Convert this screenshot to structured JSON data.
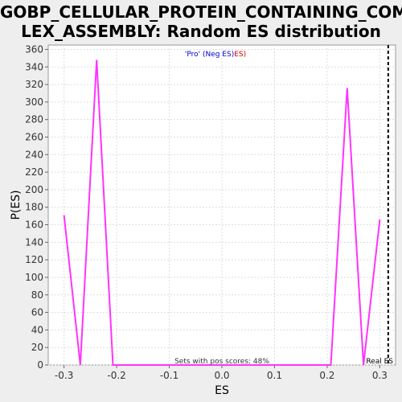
{
  "chart_data": {
    "type": "line",
    "title_line_1": "GOBP_CELLULAR_PROTEIN_CONTAINING_COMP",
    "title_line_2": "LEX_ASSEMBLY: Random ES distribution",
    "xlabel": "ES",
    "ylabel": "P(ES)",
    "xlim": [
      -0.33,
      0.33
    ],
    "ylim": [
      0,
      365
    ],
    "x_ticks": [
      -0.3,
      -0.2,
      -0.1,
      0.0,
      0.1,
      0.2,
      0.3
    ],
    "x_tick_labels": [
      "-0.3",
      "-0.2",
      "-0.1",
      "0.0",
      "0.1",
      "0.2",
      "0.3"
    ],
    "y_ticks": [
      0,
      20,
      40,
      60,
      80,
      100,
      120,
      140,
      160,
      180,
      200,
      220,
      240,
      260,
      280,
      300,
      320,
      340,
      360
    ],
    "y_tick_labels": [
      "0",
      "20",
      "40",
      "60",
      "80",
      "100",
      "120",
      "140",
      "160",
      "180",
      "200",
      "220",
      "240",
      "260",
      "280",
      "300",
      "320",
      "340",
      "360"
    ],
    "grid": true,
    "series": [
      {
        "color": "#ff33ff",
        "x": [
          -0.3,
          -0.269,
          -0.238,
          -0.207,
          0.207,
          0.238,
          0.269,
          0.3
        ],
        "y": [
          171,
          0,
          348,
          0,
          0,
          316,
          0,
          166
        ]
      }
    ],
    "real_es": {
      "x": 0.316,
      "label": "Real ES",
      "color": "#000000"
    },
    "legend": {
      "pro_label": "'Pro' (Neg ES)",
      "pro_color": "#0000cc",
      "es_label": "ES)",
      "es_color": "#cc0000",
      "placement": "top-center"
    },
    "footnote": "Sets with pos scores: 48%"
  }
}
